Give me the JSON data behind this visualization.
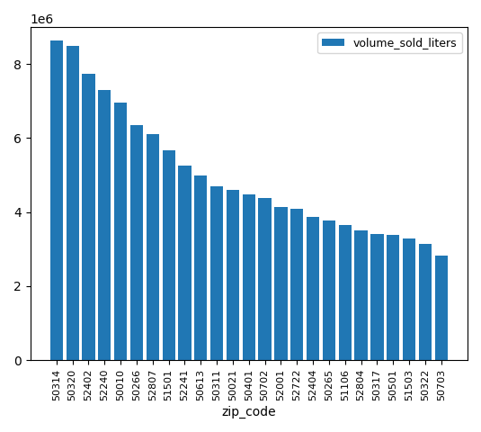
{
  "categories": [
    "50314",
    "50320",
    "52402",
    "52240",
    "50010",
    "50266",
    "52807",
    "51501",
    "52241",
    "50613",
    "50311",
    "50021",
    "50401",
    "50702",
    "52001",
    "52722",
    "52404",
    "50265",
    "51106",
    "52804",
    "50317",
    "50501",
    "51503",
    "50322",
    "50703"
  ],
  "values": [
    8650000,
    8500000,
    7750000,
    7300000,
    6950000,
    6350000,
    6100000,
    5680000,
    5250000,
    5000000,
    4700000,
    4600000,
    4480000,
    4380000,
    4150000,
    4080000,
    3880000,
    3780000,
    3650000,
    3500000,
    3400000,
    3380000,
    3280000,
    3150000,
    2820000
  ],
  "bar_color": "#2077b4",
  "xlabel": "zip_code",
  "ylabel": "",
  "legend_label": "volume_sold_liters",
  "ylim": [
    0,
    9000000
  ],
  "yticks": [
    0,
    2000000,
    4000000,
    6000000,
    8000000
  ]
}
